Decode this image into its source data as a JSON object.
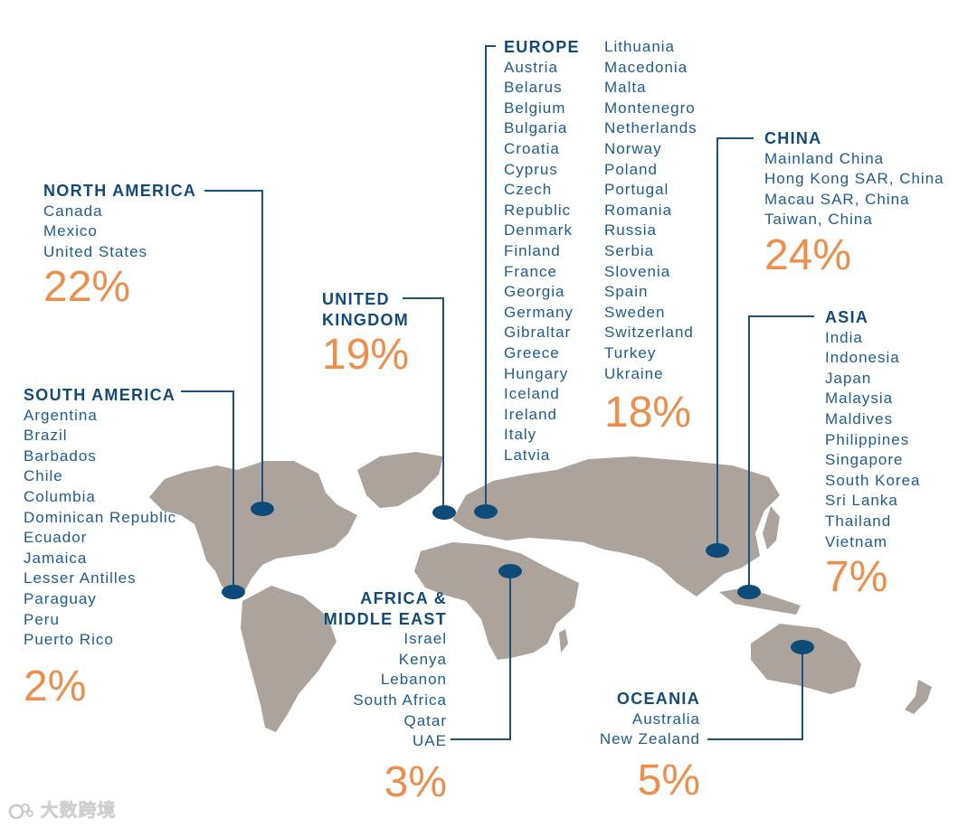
{
  "regions": {
    "north_america": {
      "title": "NORTH AMERICA",
      "countries": [
        "Canada",
        "Mexico",
        "United States"
      ],
      "percent": "22%"
    },
    "south_america": {
      "title": "SOUTH AMERICA",
      "countries": [
        "Argentina",
        "Brazil",
        "Barbados",
        "Chile",
        "Columbia",
        "Dominican Republic",
        "Ecuador",
        "Jamaica",
        "Lesser Antilles",
        "Paraguay",
        "Peru",
        "Puerto Rico"
      ],
      "percent": "2%"
    },
    "united_kingdom": {
      "title_line1": "UNITED",
      "title_line2": "KINGDOM",
      "percent": "19%"
    },
    "europe": {
      "title": "EUROPE",
      "countries_col1": [
        "Austria",
        "Belarus",
        "Belgium",
        "Bulgaria",
        "Croatia",
        "Cyprus",
        "Czech",
        "Republic",
        "Denmark",
        "Finland",
        "France",
        "Georgia",
        "Germany",
        "Gibraltar",
        "Greece",
        "Hungary",
        "Iceland",
        "Ireland",
        "Italy",
        "Latvia"
      ],
      "countries_col2": [
        "Lithuania",
        "Macedonia",
        "Malta",
        "Montenegro",
        "Netherlands",
        "Norway",
        "Poland",
        "Portugal",
        "Romania",
        "Russia",
        "Serbia",
        "Slovenia",
        "Spain",
        "Sweden",
        "Switzerland",
        "Turkey",
        "Ukraine"
      ],
      "percent": "18%"
    },
    "china": {
      "title": "CHINA",
      "countries": [
        "Mainland China",
        "Hong Kong SAR, China",
        "Macau SAR, China",
        "Taiwan, China"
      ],
      "percent": "24%"
    },
    "asia": {
      "title": "ASIA",
      "countries": [
        "India",
        "Indonesia",
        "Japan",
        "Malaysia",
        "Maldives",
        "Philippines",
        "Singapore",
        "South Korea",
        "Sri Lanka",
        "Thailand",
        "Vietnam"
      ],
      "percent": "7%"
    },
    "africa_middle_east": {
      "title_line1": "AFRICA &",
      "title_line2": "MIDDLE EAST",
      "countries": [
        "Israel",
        "Kenya",
        "Lebanon",
        "South Africa",
        "Qatar",
        "UAE"
      ],
      "percent": "3%"
    },
    "oceania": {
      "title": "OCEANIA",
      "countries": [
        "Australia",
        "New Zealand"
      ],
      "percent": "5%"
    }
  },
  "watermark": {
    "text": "大数跨境"
  },
  "colors": {
    "heading": "#124a78",
    "country_text": "#1f5b8e",
    "percent": "#ec8e4c",
    "land": "#aca39d",
    "marker": "#0f4b78"
  }
}
